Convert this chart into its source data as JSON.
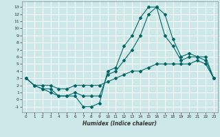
{
  "xlabel": "Humidex (Indice chaleur)",
  "background_color": "#cce8e8",
  "grid_color": "#ffffff",
  "line_color": "#006666",
  "xlim": [
    -0.5,
    23.5
  ],
  "ylim": [
    -1.8,
    13.8
  ],
  "xticks": [
    0,
    1,
    2,
    3,
    4,
    5,
    6,
    7,
    8,
    9,
    10,
    11,
    12,
    13,
    14,
    15,
    16,
    17,
    18,
    19,
    20,
    21,
    22,
    23
  ],
  "yticks": [
    -1,
    0,
    1,
    2,
    3,
    4,
    5,
    6,
    7,
    8,
    9,
    10,
    11,
    12,
    13
  ],
  "line1_x": [
    0,
    1,
    2,
    3,
    4,
    5,
    6,
    7,
    8,
    9,
    10,
    11,
    12,
    13,
    14,
    15,
    16,
    17,
    18,
    19,
    20,
    21,
    22,
    23
  ],
  "line1_y": [
    3,
    2,
    1.5,
    1,
    0.5,
    0.5,
    0.5,
    -1,
    -1,
    -0.5,
    4,
    4.5,
    7.5,
    9,
    11.5,
    13,
    13,
    9,
    7.5,
    5.5,
    6,
    6,
    5.5,
    3
  ],
  "line2_x": [
    0,
    1,
    2,
    3,
    4,
    5,
    6,
    7,
    8,
    9,
    10,
    11,
    12,
    13,
    14,
    15,
    16,
    17,
    18,
    19,
    20,
    21,
    22,
    23
  ],
  "line2_y": [
    3,
    2,
    1.5,
    1.5,
    0.5,
    0.5,
    1,
    0.5,
    0.5,
    0.5,
    3.5,
    4,
    5.5,
    7,
    9,
    12,
    13,
    12,
    8.5,
    6,
    6.5,
    6,
    6,
    3
  ],
  "line3_x": [
    0,
    1,
    2,
    3,
    4,
    5,
    6,
    7,
    8,
    9,
    10,
    11,
    12,
    13,
    14,
    15,
    16,
    17,
    18,
    19,
    20,
    21,
    22,
    23
  ],
  "line3_y": [
    3,
    2,
    2,
    2,
    1.5,
    1.5,
    2,
    2,
    2,
    2,
    2.5,
    3,
    3.5,
    4,
    4,
    4.5,
    5,
    5,
    5,
    5,
    5,
    5.5,
    5,
    3
  ]
}
